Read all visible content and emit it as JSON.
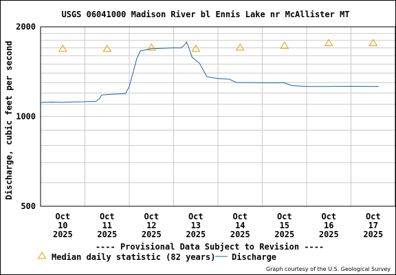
{
  "colors": {
    "series": "#1a5f9e",
    "median": "#e69b00",
    "provisional": "#cc0000",
    "grid": "#c8c8c8",
    "axis": "#000000"
  },
  "chart_data": {
    "type": "line",
    "title": "USGS 06041000 Madison River bl Ennis Lake nr McAllister MT",
    "ylabel": "Discharge, cubic feet per second",
    "xlabel": "",
    "y_scale": "log",
    "ylim": [
      500,
      2000
    ],
    "y_ticks": [
      500,
      1000,
      2000
    ],
    "y_tick_labels": [
      "500",
      "1000",
      "2000"
    ],
    "xlim": [
      "2025-10-10 00:00",
      "2025-10-18 00:00"
    ],
    "x_ticks": [
      {
        "date": "2025-10-10 12:00",
        "label": [
          "Oct",
          "10",
          "2025"
        ]
      },
      {
        "date": "2025-10-11 12:00",
        "label": [
          "Oct",
          "11",
          "2025"
        ]
      },
      {
        "date": "2025-10-12 12:00",
        "label": [
          "Oct",
          "12",
          "2025"
        ]
      },
      {
        "date": "2025-10-13 12:00",
        "label": [
          "Oct",
          "13",
          "2025"
        ]
      },
      {
        "date": "2025-10-14 12:00",
        "label": [
          "Oct",
          "14",
          "2025"
        ]
      },
      {
        "date": "2025-10-15 12:00",
        "label": [
          "Oct",
          "15",
          "2025"
        ]
      },
      {
        "date": "2025-10-16 12:00",
        "label": [
          "Oct",
          "16",
          "2025"
        ]
      },
      {
        "date": "2025-10-17 12:00",
        "label": [
          "Oct",
          "17",
          "2025"
        ]
      }
    ],
    "grid": true,
    "provisional_note": "---- Provisional Data Subject to Revision ----",
    "legend": {
      "placement": "bottom",
      "median_label": "Median daily statistic (82 years)",
      "series_label": "Discharge"
    },
    "credit": "Graph courtesy of the U.S. Geological Survey",
    "median": {
      "name": "Median daily statistic (82 years)",
      "points": [
        {
          "x": "2025-10-10 12:00",
          "y": 1690
        },
        {
          "x": "2025-10-11 12:00",
          "y": 1690
        },
        {
          "x": "2025-10-12 12:00",
          "y": 1705
        },
        {
          "x": "2025-10-13 12:00",
          "y": 1690
        },
        {
          "x": "2025-10-14 12:00",
          "y": 1705
        },
        {
          "x": "2025-10-15 12:00",
          "y": 1730
        },
        {
          "x": "2025-10-16 12:00",
          "y": 1765
        },
        {
          "x": "2025-10-17 12:00",
          "y": 1765
        }
      ]
    },
    "series": [
      {
        "name": "Discharge",
        "points": [
          {
            "x": "2025-10-10 00:00",
            "y": 1115
          },
          {
            "x": "2025-10-10 06:00",
            "y": 1118
          },
          {
            "x": "2025-10-10 12:00",
            "y": 1117
          },
          {
            "x": "2025-10-10 18:00",
            "y": 1120
          },
          {
            "x": "2025-10-11 00:00",
            "y": 1121
          },
          {
            "x": "2025-10-11 06:00",
            "y": 1125
          },
          {
            "x": "2025-10-11 08:00",
            "y": 1150
          },
          {
            "x": "2025-10-11 09:00",
            "y": 1180
          },
          {
            "x": "2025-10-11 12:00",
            "y": 1185
          },
          {
            "x": "2025-10-11 18:00",
            "y": 1190
          },
          {
            "x": "2025-10-11 22:00",
            "y": 1195
          },
          {
            "x": "2025-10-12 00:00",
            "y": 1260
          },
          {
            "x": "2025-10-12 02:00",
            "y": 1400
          },
          {
            "x": "2025-10-12 04:00",
            "y": 1560
          },
          {
            "x": "2025-10-12 06:00",
            "y": 1660
          },
          {
            "x": "2025-10-12 12:00",
            "y": 1690
          },
          {
            "x": "2025-10-12 18:00",
            "y": 1695
          },
          {
            "x": "2025-10-13 00:00",
            "y": 1700
          },
          {
            "x": "2025-10-13 04:00",
            "y": 1698
          },
          {
            "x": "2025-10-13 06:00",
            "y": 1740
          },
          {
            "x": "2025-10-13 07:00",
            "y": 1780
          },
          {
            "x": "2025-10-13 08:00",
            "y": 1720
          },
          {
            "x": "2025-10-13 10:00",
            "y": 1580
          },
          {
            "x": "2025-10-13 14:00",
            "y": 1510
          },
          {
            "x": "2025-10-13 18:00",
            "y": 1360
          },
          {
            "x": "2025-10-14 00:00",
            "y": 1340
          },
          {
            "x": "2025-10-14 06:00",
            "y": 1335
          },
          {
            "x": "2025-10-14 10:00",
            "y": 1300
          },
          {
            "x": "2025-10-14 18:00",
            "y": 1300
          },
          {
            "x": "2025-10-15 00:00",
            "y": 1298
          },
          {
            "x": "2025-10-15 12:00",
            "y": 1297
          },
          {
            "x": "2025-10-15 16:00",
            "y": 1270
          },
          {
            "x": "2025-10-16 00:00",
            "y": 1262
          },
          {
            "x": "2025-10-16 12:00",
            "y": 1262
          },
          {
            "x": "2025-10-17 00:00",
            "y": 1263
          },
          {
            "x": "2025-10-17 12:00",
            "y": 1262
          },
          {
            "x": "2025-10-17 15:00",
            "y": 1263
          }
        ]
      }
    ]
  }
}
